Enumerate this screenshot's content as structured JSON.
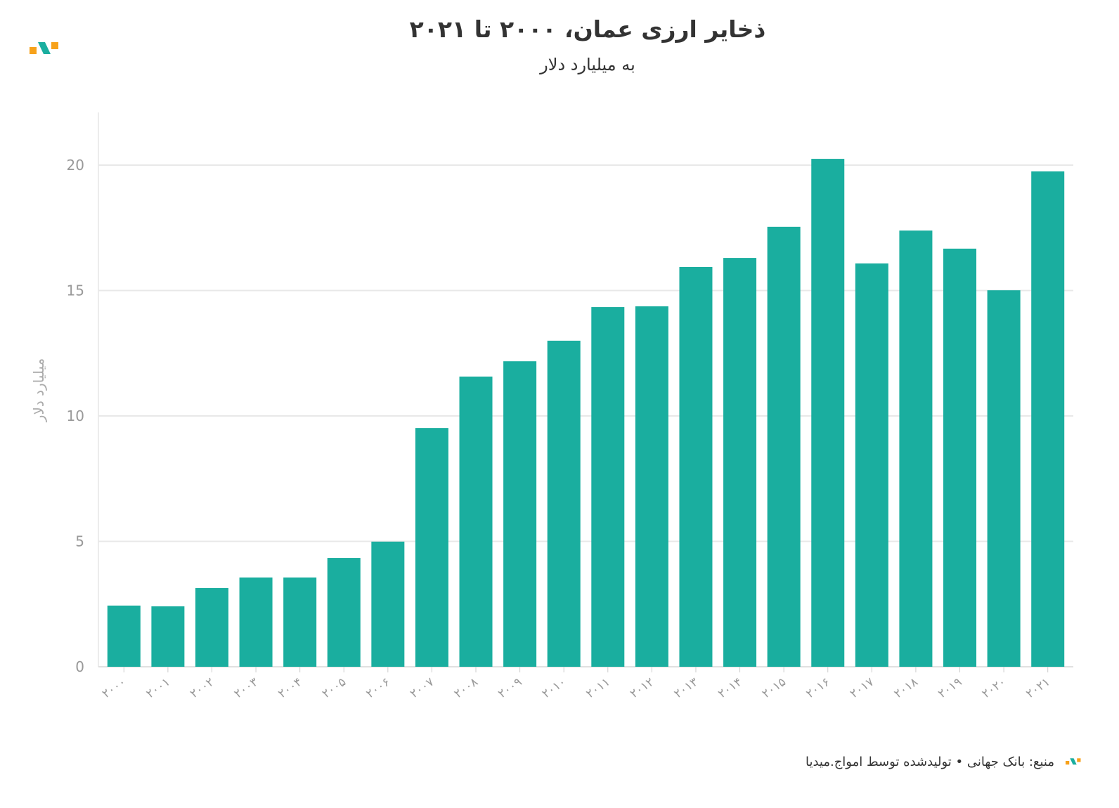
{
  "chart_data": {
    "type": "bar",
    "title": "ذخایر ارزی عمان، ۲۰۰۰ تا ۲۰۲۱",
    "subtitle": "به میلیارد دلار",
    "ylabel": "میلیارد دلار",
    "xlabel": "",
    "categories": [
      "۲۰۰۰",
      "۲۰۰۱",
      "۲۰۰۲",
      "۲۰۰۳",
      "۲۰۰۴",
      "۲۰۰۵",
      "۲۰۰۶",
      "۲۰۰۷",
      "۲۰۰۸",
      "۲۰۰۹",
      "۲۰۱۰",
      "۲۰۱۱",
      "۲۰۱۲",
      "۲۰۱۳",
      "۲۰۱۴",
      "۲۰۱۵",
      "۲۰۱۶",
      "۲۰۱۷",
      "۲۰۱۸",
      "۲۰۱۹",
      "۲۰۲۰",
      "۲۰۲۱"
    ],
    "values": [
      2.44,
      2.41,
      3.14,
      3.56,
      3.56,
      4.34,
      4.99,
      9.52,
      11.57,
      12.18,
      13.0,
      14.34,
      14.37,
      15.94,
      16.3,
      17.54,
      20.25,
      16.08,
      17.39,
      16.67,
      15.01,
      19.75
    ],
    "ylim": [
      0,
      22
    ],
    "yticks": [
      "0",
      "5",
      "10",
      "15",
      "20"
    ],
    "ytick_values": [
      0,
      5,
      10,
      15,
      20
    ],
    "grid": true,
    "bar_color": "#1aae9f"
  },
  "footer": {
    "source": "منبع: بانک جهانی • تولیدشده توسط امواج.میدیا"
  },
  "logo_colors": {
    "orange": "#f7a21b",
    "teal": "#1aae9f"
  }
}
